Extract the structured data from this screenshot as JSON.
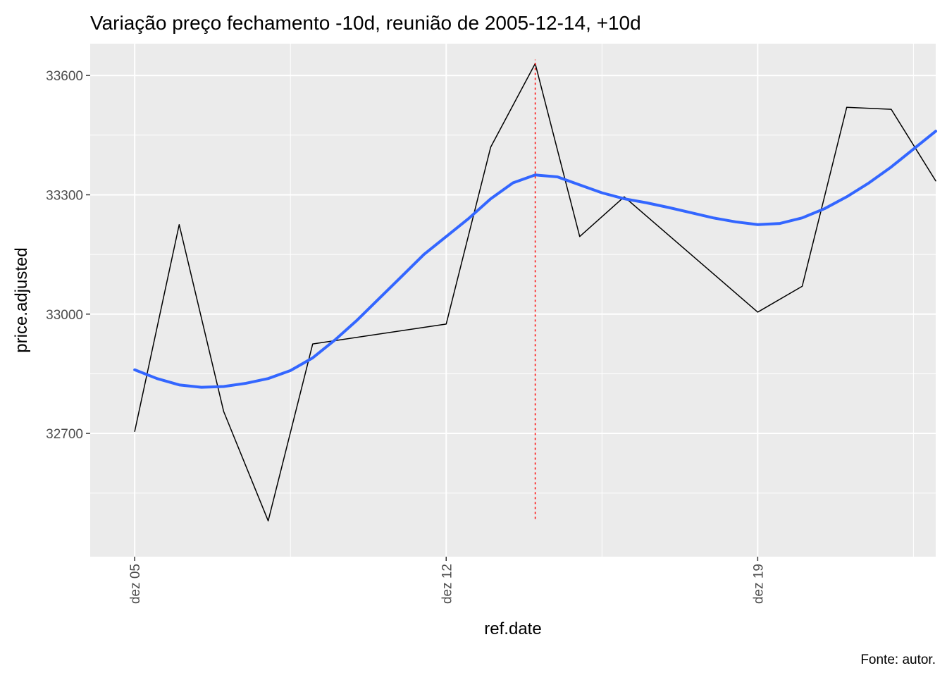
{
  "chart_data": {
    "type": "line",
    "title": "Variação preço fechamento -10d, reunião de 2005-12-14, +10d",
    "xlabel": "ref.date",
    "ylabel": "price.adjusted",
    "caption": "Fonte: autor.",
    "x_tick_labels": [
      {
        "date": "2005-12-05",
        "label": "dez 05"
      },
      {
        "date": "2005-12-12",
        "label": "dez 12"
      },
      {
        "date": "2005-12-19",
        "label": "dez 19"
      }
    ],
    "y_ticks": [
      32700,
      33000,
      33300,
      33600
    ],
    "xlim": [
      "2005-12-04",
      "2005-12-23"
    ],
    "ylim": [
      32390,
      33680
    ],
    "grid": true,
    "series": [
      {
        "type": "line",
        "color": "#000000",
        "x": [
          "2005-12-05",
          "2005-12-06",
          "2005-12-07",
          "2005-12-08",
          "2005-12-09",
          "2005-12-12",
          "2005-12-13",
          "2005-12-14",
          "2005-12-15",
          "2005-12-16",
          "2005-12-19",
          "2005-12-20",
          "2005-12-21",
          "2005-12-22",
          "2005-12-23"
        ],
        "values": [
          32705,
          33225,
          32755,
          32480,
          32925,
          32975,
          33420,
          33630,
          33195,
          33295,
          33005,
          33070,
          33520,
          33515,
          33335
        ]
      },
      {
        "type": "smooth",
        "color": "#3366ff",
        "x": [
          "2005-12-05",
          "2005-12-05T12:00",
          "2005-12-06",
          "2005-12-06T12:00",
          "2005-12-07",
          "2005-12-07T12:00",
          "2005-12-08",
          "2005-12-08T12:00",
          "2005-12-09",
          "2005-12-09T12:00",
          "2005-12-10",
          "2005-12-10T12:00",
          "2005-12-11",
          "2005-12-11T12:00",
          "2005-12-12",
          "2005-12-12T12:00",
          "2005-12-13",
          "2005-12-13T12:00",
          "2005-12-14",
          "2005-12-14T12:00",
          "2005-12-15",
          "2005-12-15T12:00",
          "2005-12-16",
          "2005-12-16T12:00",
          "2005-12-17",
          "2005-12-17T12:00",
          "2005-12-18",
          "2005-12-18T12:00",
          "2005-12-19",
          "2005-12-19T12:00",
          "2005-12-20",
          "2005-12-20T12:00",
          "2005-12-21",
          "2005-12-21T12:00",
          "2005-12-22",
          "2005-12-22T12:00",
          "2005-12-23"
        ],
        "values": [
          32860,
          32838,
          32822,
          32816,
          32818,
          32826,
          32838,
          32858,
          32890,
          32935,
          32985,
          33040,
          33095,
          33150,
          33195,
          33240,
          33290,
          33330,
          33350,
          33345,
          33325,
          33305,
          33290,
          33280,
          33268,
          33255,
          33242,
          33232,
          33225,
          33228,
          33242,
          33265,
          33295,
          33330,
          33370,
          33415,
          33460
        ]
      },
      {
        "type": "vline",
        "color": "#ff0000",
        "x": "2005-12-14",
        "from": 32485,
        "to": 33640
      }
    ]
  }
}
